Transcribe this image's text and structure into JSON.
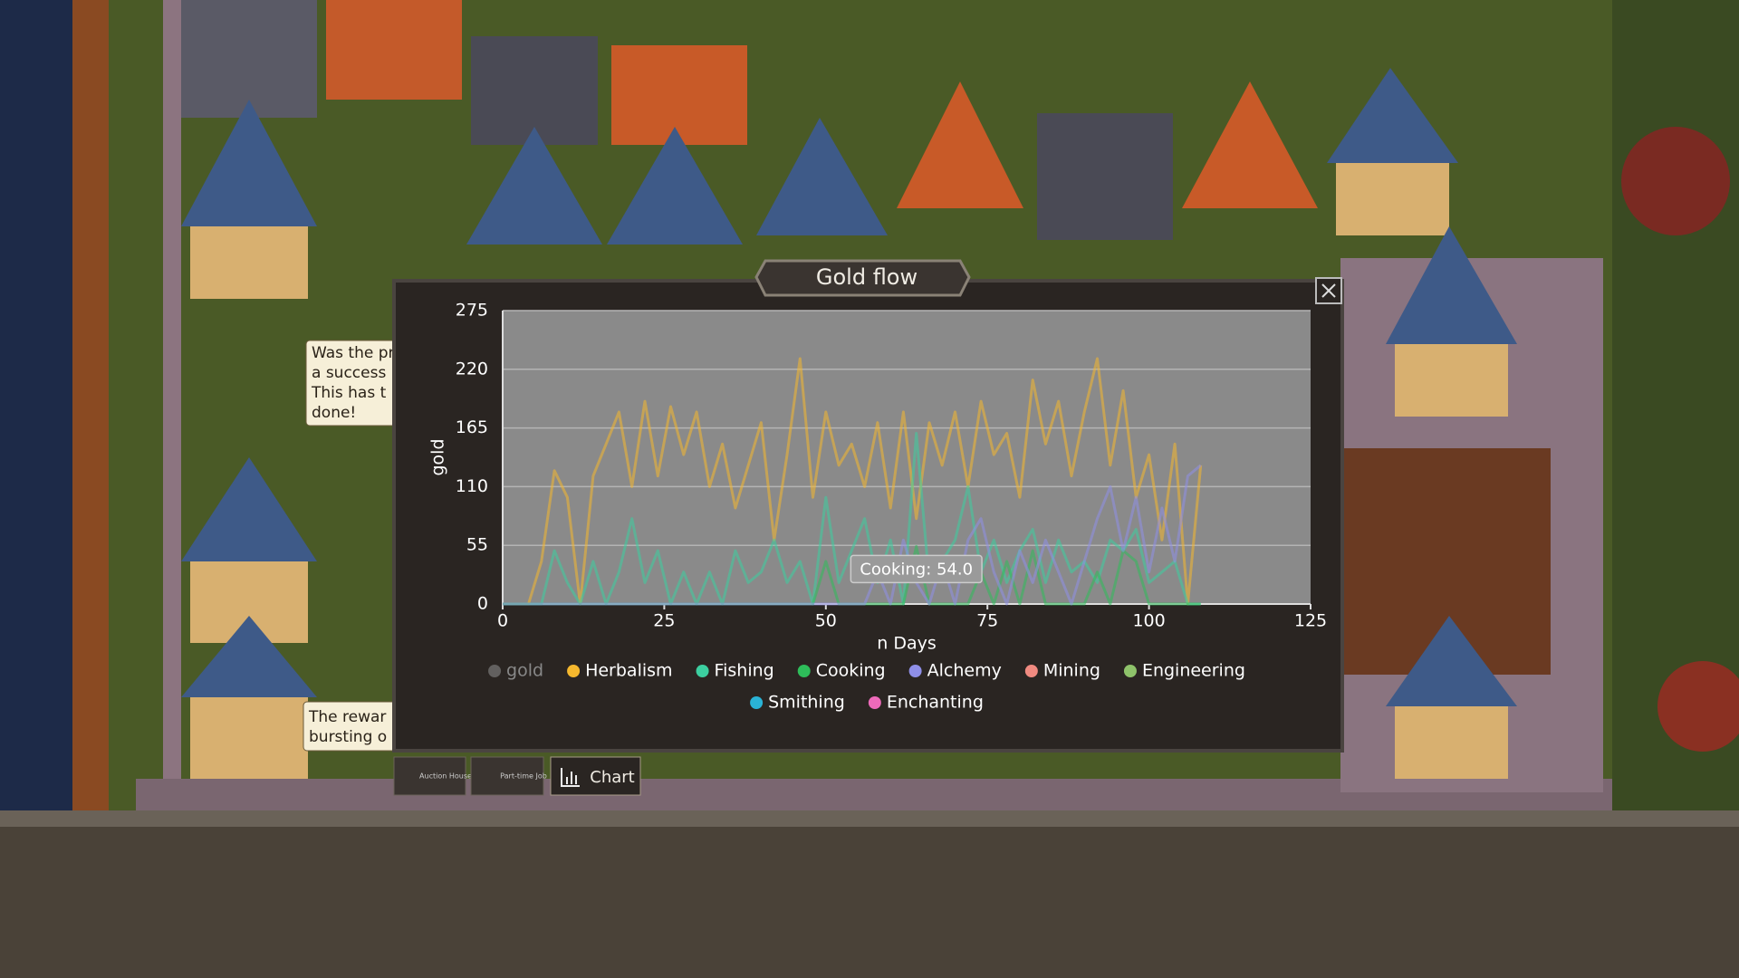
{
  "chart_data": {
    "type": "line",
    "title": "Gold flow",
    "xlabel": "n Days",
    "ylabel": "gold",
    "annotation": "Cooking: 54.0",
    "xlim": [
      0,
      125
    ],
    "xticks": [
      0,
      25,
      50,
      75,
      100,
      125
    ],
    "ylim": [
      0,
      275
    ],
    "yticks": [
      0,
      55,
      110,
      165,
      220,
      275
    ],
    "grid": true,
    "x": [
      0,
      2,
      4,
      6,
      8,
      10,
      12,
      14,
      16,
      18,
      20,
      22,
      24,
      26,
      28,
      30,
      32,
      34,
      36,
      38,
      40,
      42,
      44,
      46,
      48,
      50,
      52,
      54,
      56,
      58,
      60,
      62,
      64,
      66,
      68,
      70,
      72,
      74,
      76,
      78,
      80,
      82,
      84,
      86,
      88,
      90,
      92,
      94,
      96,
      98,
      100,
      102,
      104,
      106,
      108
    ],
    "series": [
      {
        "name": "gold",
        "color": "#888888",
        "hidden": true
      },
      {
        "name": "Herbalism",
        "color": "#f5b82e",
        "values": [
          0,
          0,
          0,
          40,
          125,
          100,
          0,
          120,
          150,
          180,
          110,
          190,
          120,
          185,
          140,
          180,
          110,
          150,
          90,
          130,
          170,
          60,
          140,
          230,
          100,
          180,
          130,
          150,
          110,
          170,
          90,
          180,
          80,
          170,
          130,
          180,
          110,
          190,
          140,
          160,
          100,
          210,
          150,
          190,
          120,
          180,
          230,
          130,
          200,
          100,
          140,
          60,
          150,
          0,
          130
        ]
      },
      {
        "name": "Fishing",
        "color": "#3ccfa0",
        "values": [
          0,
          0,
          0,
          0,
          50,
          20,
          0,
          40,
          0,
          30,
          80,
          20,
          50,
          0,
          30,
          0,
          30,
          0,
          50,
          20,
          30,
          60,
          20,
          40,
          0,
          100,
          20,
          50,
          80,
          20,
          60,
          0,
          160,
          20,
          40,
          60,
          110,
          30,
          60,
          20,
          50,
          70,
          20,
          60,
          30,
          40,
          20,
          60,
          50,
          70,
          20,
          30,
          40,
          0,
          0
        ]
      },
      {
        "name": "Cooking",
        "color": "#2ebd5a",
        "values": [
          0,
          0,
          0,
          0,
          0,
          0,
          0,
          0,
          0,
          0,
          0,
          0,
          0,
          0,
          0,
          0,
          0,
          0,
          0,
          0,
          0,
          0,
          0,
          0,
          0,
          40,
          0,
          0,
          0,
          0,
          0,
          0,
          54,
          0,
          0,
          0,
          0,
          30,
          0,
          40,
          0,
          50,
          0,
          0,
          0,
          0,
          30,
          0,
          50,
          40,
          0,
          0,
          0,
          0,
          0
        ]
      },
      {
        "name": "Alchemy",
        "color": "#8f8fe8",
        "values": [
          0,
          0,
          0,
          0,
          0,
          0,
          0,
          0,
          0,
          0,
          0,
          0,
          0,
          0,
          0,
          0,
          0,
          0,
          0,
          0,
          0,
          0,
          0,
          0,
          0,
          0,
          0,
          0,
          0,
          30,
          0,
          60,
          20,
          0,
          40,
          0,
          60,
          80,
          30,
          0,
          50,
          20,
          60,
          30,
          0,
          40,
          80,
          110,
          50,
          100,
          30,
          90,
          40,
          120,
          130
        ]
      },
      {
        "name": "Mining",
        "color": "#f08a80"
      },
      {
        "name": "Engineering",
        "color": "#8ec26a"
      },
      {
        "name": "Smithing",
        "color": "#2ab3d6"
      },
      {
        "name": "Enchanting",
        "color": "#ee6aba"
      }
    ]
  },
  "speech_bubbles": [
    [
      "Was the pr",
      "a success",
      "This has t",
      "done!"
    ],
    [
      "The rewar",
      "bursting o"
    ]
  ],
  "toolbar": [
    "Auction House",
    "Part-time Job",
    "Chart"
  ]
}
